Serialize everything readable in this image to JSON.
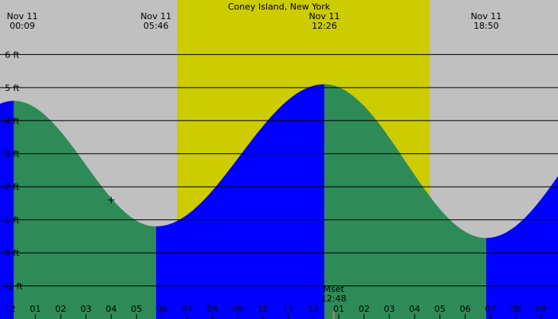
{
  "colors": {
    "night_background": "#c0c0c0",
    "daylight_band": "#cccc00",
    "rising_fill": "#0000ff",
    "falling_fill": "#2e8b57",
    "grid_line": "#000000"
  },
  "chart_data": {
    "type": "area",
    "title": "Coney Island, New York",
    "xlabel": "",
    "ylabel": "",
    "ylim": [
      -2.0,
      7.65
    ],
    "xlim": [
      -0.4,
      21.67
    ],
    "y_unit": "ft",
    "y_ticks": [
      "6 ft",
      "5 ft",
      "4 ft",
      "3 ft",
      "2 ft",
      "1 ft",
      "0 ft",
      "-1 ft"
    ],
    "y_tick_values": [
      6,
      5,
      4,
      3,
      2,
      1,
      0,
      -1
    ],
    "hour_ticks": [
      "1",
      "12",
      "01",
      "02",
      "03",
      "04",
      "05",
      "06",
      "07",
      "08",
      "09",
      "10",
      "11",
      "12",
      "01",
      "02",
      "03",
      "04",
      "05",
      "06",
      "07",
      "08",
      "09"
    ],
    "hour_tick_values": [
      -1,
      0,
      1,
      2,
      3,
      4,
      5,
      6,
      7,
      8,
      9,
      10,
      11,
      12,
      13,
      14,
      15,
      16,
      17,
      18,
      19,
      20,
      21
    ],
    "tide_extremes": [
      {
        "date": "Nov 11",
        "time": "00:09",
        "hour": 0.15,
        "height_ft": 4.6,
        "kind": "high"
      },
      {
        "date": "Nov 11",
        "time": "05:46",
        "hour": 5.77,
        "height_ft": 0.8,
        "kind": "low"
      },
      {
        "date": "Nov 11",
        "time": "12:26",
        "hour": 12.43,
        "height_ft": 5.1,
        "kind": "high"
      },
      {
        "date": "Nov 11",
        "time": "18:50",
        "hour": 18.83,
        "height_ft": 0.45,
        "kind": "low"
      }
    ],
    "start_height_ft": 4.15,
    "end_height_ft": 2.05,
    "daylight_hours": [
      6.6,
      16.6
    ],
    "moon_event": {
      "label": "Mset",
      "time": "12:48",
      "hour": 12.8
    },
    "cursor_marker": {
      "hour": 4.0,
      "height_ft": 1.6
    },
    "grid": "horizontal"
  }
}
